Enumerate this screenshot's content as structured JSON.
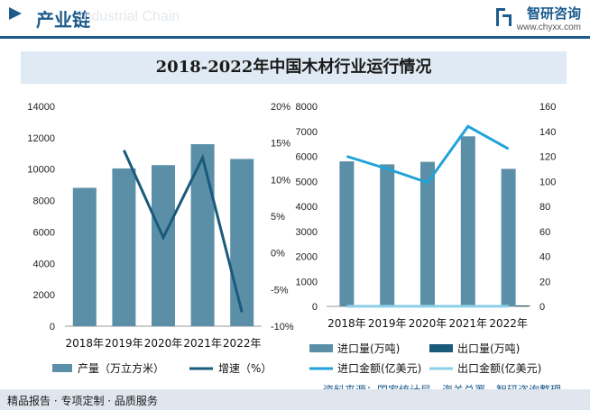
{
  "header": {
    "section_title": "产业链",
    "section_title_ghost": "Industrial Chain",
    "brand_name": "智研咨询",
    "brand_url": "www.chyxx.com"
  },
  "title": "2018-2022年中国木材行业运行情况",
  "source": "资料来源：国家统计局、海关总署、智研咨询整理",
  "footer": {
    "left": "精品报告 · 专项定制 · 品质服务"
  },
  "colors": {
    "bar": "#5b8fa8",
    "dark_line": "#1a5a7a",
    "light_line": "#21a3d9",
    "light_line2": "#8dcfe9",
    "accent": "#1d5b8c"
  },
  "chart_data": [
    {
      "type": "bar",
      "categories": [
        "2018年",
        "2019年",
        "2020年",
        "2021年",
        "2022年"
      ],
      "series": [
        {
          "name": "产量（万立方米）",
          "type": "bar",
          "axis": "left",
          "values": [
            8811,
            10046,
            10257,
            11589,
            10650
          ]
        },
        {
          "name": "增速（%）",
          "type": "line",
          "axis": "right",
          "values": [
            null,
            14.0,
            2.1,
            13.0,
            -8.1
          ]
        }
      ],
      "left_axis": {
        "ticks": [
          "0",
          "2000",
          "4000",
          "6000",
          "8000",
          "10000",
          "12000",
          "14000"
        ],
        "ylim": [
          0,
          14000
        ]
      },
      "right_axis": {
        "ticks": [
          "-10%",
          "-5%",
          "0%",
          "5%",
          "10%",
          "15%",
          "20%"
        ],
        "ylim": [
          -10,
          20
        ]
      }
    },
    {
      "type": "bar",
      "categories": [
        "2018年",
        "2019年",
        "2020年",
        "2021年",
        "2022年"
      ],
      "series": [
        {
          "name": "进口量(万吨)",
          "type": "bar",
          "axis": "left",
          "values": [
            5800,
            5680,
            5780,
            6800,
            5500
          ]
        },
        {
          "name": "出口量(万吨)",
          "type": "bar",
          "axis": "left",
          "values": [
            0,
            0,
            0,
            0,
            0
          ]
        },
        {
          "name": "进口金额(亿美元)",
          "type": "line",
          "axis": "right",
          "values": [
            120,
            110,
            99,
            144,
            126
          ]
        },
        {
          "name": "出口金额(亿美元)",
          "type": "line",
          "axis": "right",
          "values": [
            0.1,
            0.1,
            0.1,
            0.1,
            0.1
          ]
        }
      ],
      "left_axis": {
        "ticks": [
          "0",
          "1000",
          "2000",
          "3000",
          "4000",
          "5000",
          "6000",
          "7000",
          "8000"
        ],
        "ylim": [
          0,
          8000
        ]
      },
      "right_axis": {
        "ticks": [
          "0",
          "20",
          "40",
          "60",
          "80",
          "100",
          "120",
          "140",
          "160"
        ],
        "ylim": [
          0,
          160
        ]
      }
    }
  ]
}
